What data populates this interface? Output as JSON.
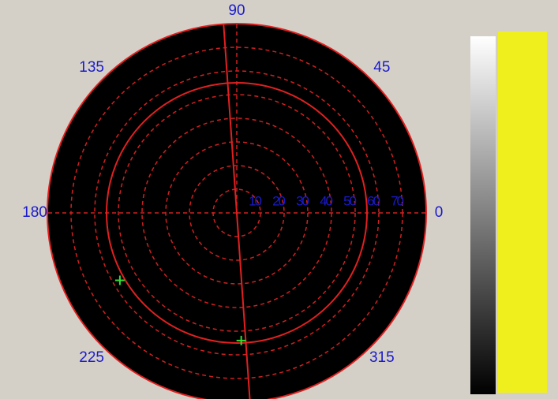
{
  "chart_data": {
    "type": "polar",
    "thetaticks": [
      0,
      45,
      90,
      135,
      180,
      225,
      315
    ],
    "rticks": [
      10,
      20,
      30,
      40,
      50,
      60,
      70
    ],
    "rlim": [
      0,
      80
    ],
    "grid": true,
    "line_angle": 94,
    "circle_r": 55,
    "theta": [
      210,
      272
    ],
    "r": [
      57,
      54
    ],
    "color": "#33dd33"
  }
}
